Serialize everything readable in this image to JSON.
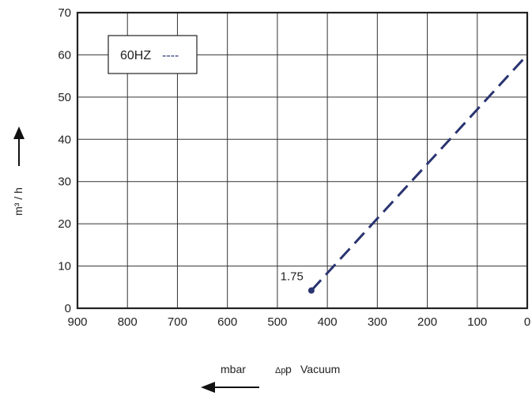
{
  "chart_data": {
    "type": "line",
    "title": "",
    "xlabel": {
      "unit": "mbar",
      "symbol": "Δp",
      "text": "Vacuum"
    },
    "ylabel": "m³ / h",
    "xlim": [
      900,
      0
    ],
    "ylim": [
      0,
      70
    ],
    "x_reversed": true,
    "x_ticks": [
      900,
      800,
      700,
      600,
      500,
      400,
      300,
      200,
      100,
      0
    ],
    "y_ticks": [
      0,
      10,
      20,
      30,
      40,
      50,
      60,
      70
    ],
    "grid": true,
    "legend": {
      "placement": "top-left",
      "label": "60HZ",
      "line_sample": "----"
    },
    "series": [
      {
        "name": "60HZ",
        "style": "dashed",
        "color": "#2a3470",
        "points": [
          [
            432,
            4.2
          ],
          [
            0,
            60
          ]
        ]
      }
    ],
    "annotations": [
      {
        "text": "1.75",
        "x": 432,
        "y": 4.2
      }
    ]
  },
  "colors": {
    "series": "#2a3470",
    "grid": "#333333",
    "frame": "#222222"
  }
}
